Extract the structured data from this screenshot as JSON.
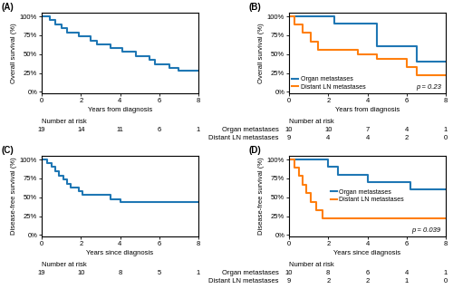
{
  "chart_data": [
    {
      "type": "step",
      "title": "(A)",
      "xlabel": "Years from diagnosis",
      "ylabel": "Overall survival (%)",
      "xlim": [
        0,
        8
      ],
      "ylim": [
        -0.02,
        1.05
      ],
      "xticks": [
        0,
        2,
        4,
        6,
        8
      ],
      "yticks": [
        {
          "value": 0,
          "label": "0%"
        },
        {
          "value": 0.25,
          "label": "25%"
        },
        {
          "value": 0.5,
          "label": "50%"
        },
        {
          "value": 0.75,
          "label": "75%"
        },
        {
          "value": 1.0,
          "label": "100%"
        }
      ],
      "grid": false,
      "series": [
        {
          "x": [
            0,
            0.4,
            0.7,
            1.0,
            1.3,
            1.6,
            1.9,
            2.1,
            2.5,
            2.8,
            3.1,
            3.5,
            3.8,
            4.1,
            4.5,
            4.8,
            5.1,
            5.5,
            5.8,
            6.2,
            6.5,
            6.9,
            7.0,
            7.5,
            8.0
          ],
          "values": [
            1.0,
            0.95,
            0.89,
            0.84,
            0.79,
            0.79,
            0.74,
            0.74,
            0.68,
            0.63,
            0.63,
            0.58,
            0.58,
            0.53,
            0.53,
            0.47,
            0.47,
            0.42,
            0.37,
            0.37,
            0.32,
            0.32,
            0.28,
            0.28,
            0.28
          ]
        }
      ],
      "at_risk": {
        "label": "Number at risk",
        "x": [
          0,
          2,
          4,
          6,
          8
        ],
        "rows": [
          {
            "values": [
              19,
              14,
              11,
              6,
              1
            ]
          }
        ]
      }
    },
    {
      "type": "step",
      "title": "(B)",
      "xlabel": "Years from diagnosis",
      "ylabel": "Overall survival (%)",
      "xlim": [
        0,
        8
      ],
      "ylim": [
        -0.02,
        1.05
      ],
      "xticks": [
        0,
        2,
        4,
        6,
        8
      ],
      "yticks": [
        {
          "value": 0,
          "label": "0%"
        },
        {
          "value": 0.25,
          "label": "25%"
        },
        {
          "value": 0.5,
          "label": "50%"
        },
        {
          "value": 0.75,
          "label": "75%"
        },
        {
          "value": 1.0,
          "label": "100%"
        }
      ],
      "grid": false,
      "legend": "lower left",
      "annotations": [
        "p = 0.23"
      ],
      "series": [
        {
          "name": "Organ metastases",
          "x": [
            0,
            1.0,
            2.0,
            2.3,
            4.2,
            4.5,
            6.2,
            6.5,
            7.5,
            8.0
          ],
          "values": [
            1.0,
            1.0,
            1.0,
            0.9,
            0.9,
            0.6,
            0.6,
            0.4,
            0.4,
            0.4
          ]
        },
        {
          "name": "Distant LN metastases",
          "x": [
            0,
            0.3,
            0.7,
            1.1,
            1.5,
            2.0,
            3.5,
            4.0,
            4.5,
            5.5,
            6.0,
            6.5,
            7.0,
            8.0
          ],
          "values": [
            1.0,
            0.89,
            0.78,
            0.67,
            0.56,
            0.56,
            0.5,
            0.5,
            0.44,
            0.44,
            0.33,
            0.22,
            0.22,
            0.22
          ]
        }
      ],
      "at_risk": {
        "label": "Number at risk",
        "x": [
          0,
          2,
          4,
          6,
          8
        ],
        "rows": [
          {
            "name": "Organ metastases",
            "values": [
              10,
              10,
              7,
              4,
              1
            ]
          },
          {
            "name": "Distant LN metastases",
            "values": [
              9,
              4,
              4,
              2,
              0
            ]
          }
        ]
      }
    },
    {
      "type": "step",
      "title": "(C)",
      "xlabel": "Years since diagnosis",
      "ylabel": "Disease-free survival (%)",
      "xlim": [
        0,
        8
      ],
      "ylim": [
        -0.02,
        1.05
      ],
      "xticks": [
        0,
        2,
        4,
        6,
        8
      ],
      "yticks": [
        {
          "value": 0,
          "label": "0%"
        },
        {
          "value": 0.25,
          "label": "25%"
        },
        {
          "value": 0.5,
          "label": "50%"
        },
        {
          "value": 0.75,
          "label": "75%"
        },
        {
          "value": 1.0,
          "label": "100%"
        }
      ],
      "grid": false,
      "series": [
        {
          "x": [
            0,
            0.3,
            0.5,
            0.7,
            0.9,
            1.1,
            1.3,
            1.5,
            1.7,
            1.9,
            2.1,
            2.4,
            2.7,
            3.0,
            3.5,
            4.0,
            4.2,
            8.0
          ],
          "values": [
            1.0,
            0.95,
            0.9,
            0.84,
            0.79,
            0.74,
            0.68,
            0.63,
            0.63,
            0.58,
            0.53,
            0.53,
            0.53,
            0.53,
            0.47,
            0.44,
            0.44,
            0.44
          ]
        }
      ],
      "at_risk": {
        "label": "Number at risk",
        "x": [
          0,
          2,
          4,
          6,
          8
        ],
        "rows": [
          {
            "values": [
              19,
              10,
              8,
              5,
              1
            ]
          }
        ]
      }
    },
    {
      "type": "step",
      "title": "(D)",
      "xlabel": "Years since diagnosis",
      "ylabel": "Disease-free survival (%)",
      "xlim": [
        0,
        8
      ],
      "ylim": [
        -0.02,
        1.05
      ],
      "xticks": [
        0,
        2,
        4,
        6,
        8
      ],
      "yticks": [
        {
          "value": 0,
          "label": "0%"
        },
        {
          "value": 0.25,
          "label": "25%"
        },
        {
          "value": 0.5,
          "label": "50%"
        },
        {
          "value": 0.75,
          "label": "75%"
        },
        {
          "value": 1.0,
          "label": "100%"
        }
      ],
      "grid": false,
      "legend": "center",
      "annotations": [
        "p = 0.039"
      ],
      "series": [
        {
          "name": "Organ metastases",
          "x": [
            0,
            0.3,
            1.8,
            2.0,
            2.5,
            3.5,
            4.0,
            5.5,
            6.2,
            7.5,
            8.0
          ],
          "values": [
            1.0,
            1.0,
            1.0,
            0.9,
            0.8,
            0.8,
            0.7,
            0.7,
            0.6,
            0.6,
            0.6
          ]
        },
        {
          "name": "Distant LN metastases",
          "x": [
            0,
            0.3,
            0.5,
            0.7,
            0.9,
            1.1,
            1.4,
            1.7,
            2.0,
            8.0
          ],
          "values": [
            1.0,
            0.89,
            0.78,
            0.67,
            0.56,
            0.44,
            0.33,
            0.22,
            0.22,
            0.22
          ]
        }
      ],
      "at_risk": {
        "label": "Number at risk",
        "x": [
          0,
          2,
          4,
          6,
          8
        ],
        "rows": [
          {
            "name": "Organ metastases",
            "values": [
              10,
              8,
              6,
              4,
              1
            ]
          },
          {
            "name": "Distant LN metastases",
            "values": [
              9,
              2,
              2,
              1,
              0
            ]
          }
        ]
      }
    }
  ]
}
